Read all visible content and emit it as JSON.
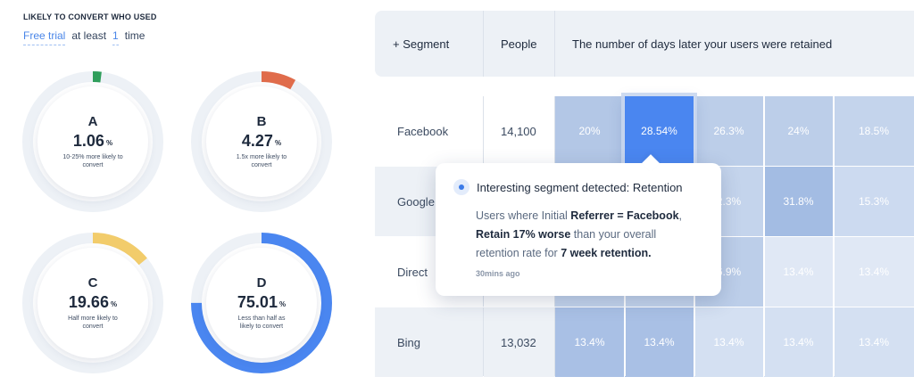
{
  "filter": {
    "section_title": "LIKELY TO CONVERT WHO USED",
    "feature": "Free trial",
    "connector": "at least",
    "count": "1",
    "unit": "time"
  },
  "donuts": [
    {
      "letter": "A",
      "value": "1.06",
      "unit": "%",
      "description": "10-25% more likely to convert",
      "fill_fraction": 0.02,
      "color": "#2f9e5b"
    },
    {
      "letter": "B",
      "value": "4.27",
      "unit": "%",
      "description": "1.5x more likely to convert",
      "fill_fraction": 0.08,
      "color": "#e06c4b"
    },
    {
      "letter": "C",
      "value": "19.66",
      "unit": "%",
      "description": "Half more likely to convert",
      "fill_fraction": 0.14,
      "color": "#f2cc6b"
    },
    {
      "letter": "D",
      "value": "75.01",
      "unit": "%",
      "description": "Less than half as likely to convert",
      "fill_fraction": 0.75,
      "color": "#4a86f0"
    }
  ],
  "table": {
    "headers": {
      "segment": "+ Segment",
      "people": "People",
      "retention": "The number of days later your users were retained"
    },
    "rows": [
      {
        "segment": "Facebook",
        "people": "14,100",
        "cells": [
          "20%",
          "28.54%",
          "26.3%",
          "24%",
          "18.5%"
        ]
      },
      {
        "segment": "Google",
        "people": "",
        "cells": [
          "",
          "",
          "2.3%",
          "31.8%",
          "15.3%"
        ]
      },
      {
        "segment": "Direct",
        "people": "",
        "cells": [
          "",
          "",
          "6.9%",
          "13.4%",
          "13.4%"
        ]
      },
      {
        "segment": "Bing",
        "people": "13,032",
        "cells": [
          "13.4%",
          "13.4%",
          "13.4%",
          "13.4%",
          "13.4%"
        ]
      }
    ],
    "cell_colors": [
      [
        "#b3c7e6",
        "#4a86f0",
        "#bccee9",
        "#bccee9",
        "#c4d4ec"
      ],
      [
        "#b3c7e6",
        "#b3c7e6",
        "#c4d4ec",
        "#a3bce3",
        "#ccdaf0"
      ],
      [
        "#c4d4ec",
        "#c4d4ec",
        "#bccee9",
        "#e0e8f5",
        "#e0e8f5"
      ],
      [
        "#a9c0e5",
        "#a9c0e5",
        "#d4e0f2",
        "#d4e0f2",
        "#d4e0f2"
      ]
    ]
  },
  "popover": {
    "title": "Interesting segment detected: Retention",
    "line1_prefix": "Users where Initial ",
    "line1_bold": "Referrer = Facebook",
    "line1_suffix": ",",
    "line2_bold": "Retain 17% worse",
    "line2_suffix": " than your overall",
    "line3_prefix": "retention rate for ",
    "line3_bold": "7 week retention.",
    "time": "30mins ago"
  }
}
